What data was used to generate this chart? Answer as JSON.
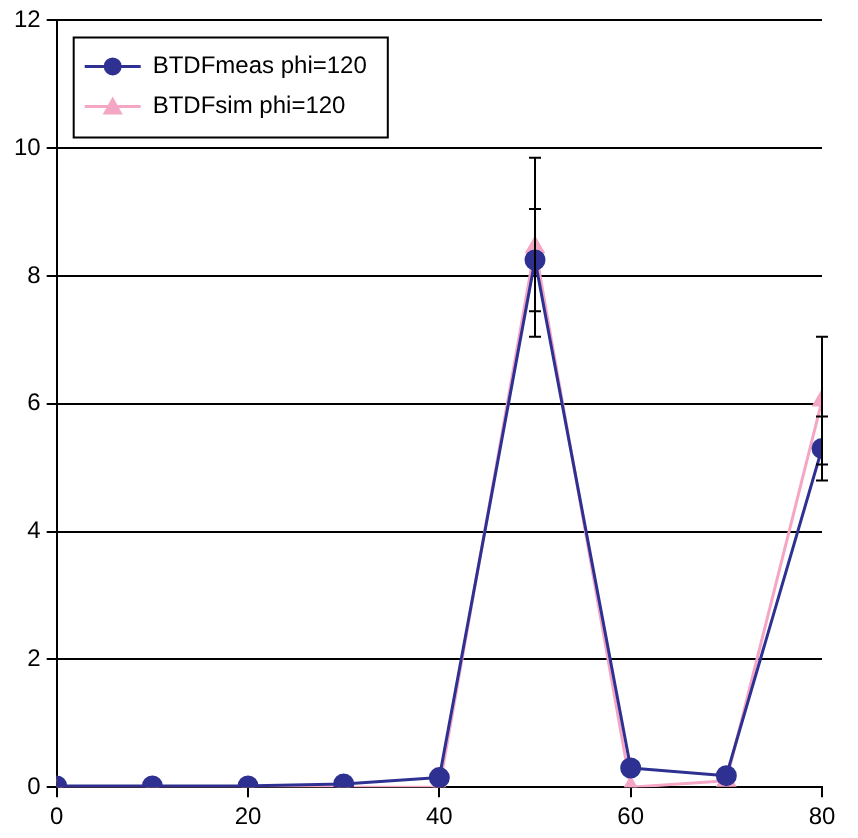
{
  "chart_data": {
    "type": "line",
    "x": [
      0,
      10,
      20,
      30,
      40,
      50,
      60,
      70,
      80
    ],
    "series": [
      {
        "name": "BTDFmeas phi=120",
        "color": "#2e3192",
        "marker": "circle",
        "values": [
          0.02,
          0.02,
          0.02,
          0.05,
          0.15,
          8.25,
          0.3,
          0.18,
          5.3
        ],
        "errors": [
          null,
          null,
          null,
          null,
          null,
          0.8,
          null,
          null,
          0.5
        ]
      },
      {
        "name": "BTDFsim phi=120",
        "color": "#f4a6c4",
        "marker": "triangle",
        "values": [
          0,
          0,
          0,
          0,
          0,
          8.45,
          0,
          0.1,
          6.05
        ],
        "errors": [
          null,
          null,
          null,
          null,
          null,
          1.4,
          null,
          null,
          1
        ]
      }
    ],
    "xlim": [
      0,
      80
    ],
    "xticks": [
      0,
      20,
      40,
      60,
      80
    ],
    "ylim": [
      0,
      12
    ],
    "yticks": [
      0,
      2,
      4,
      6,
      8,
      10,
      12
    ],
    "grid": "y",
    "legend": "top left",
    "line_style": "solid"
  }
}
